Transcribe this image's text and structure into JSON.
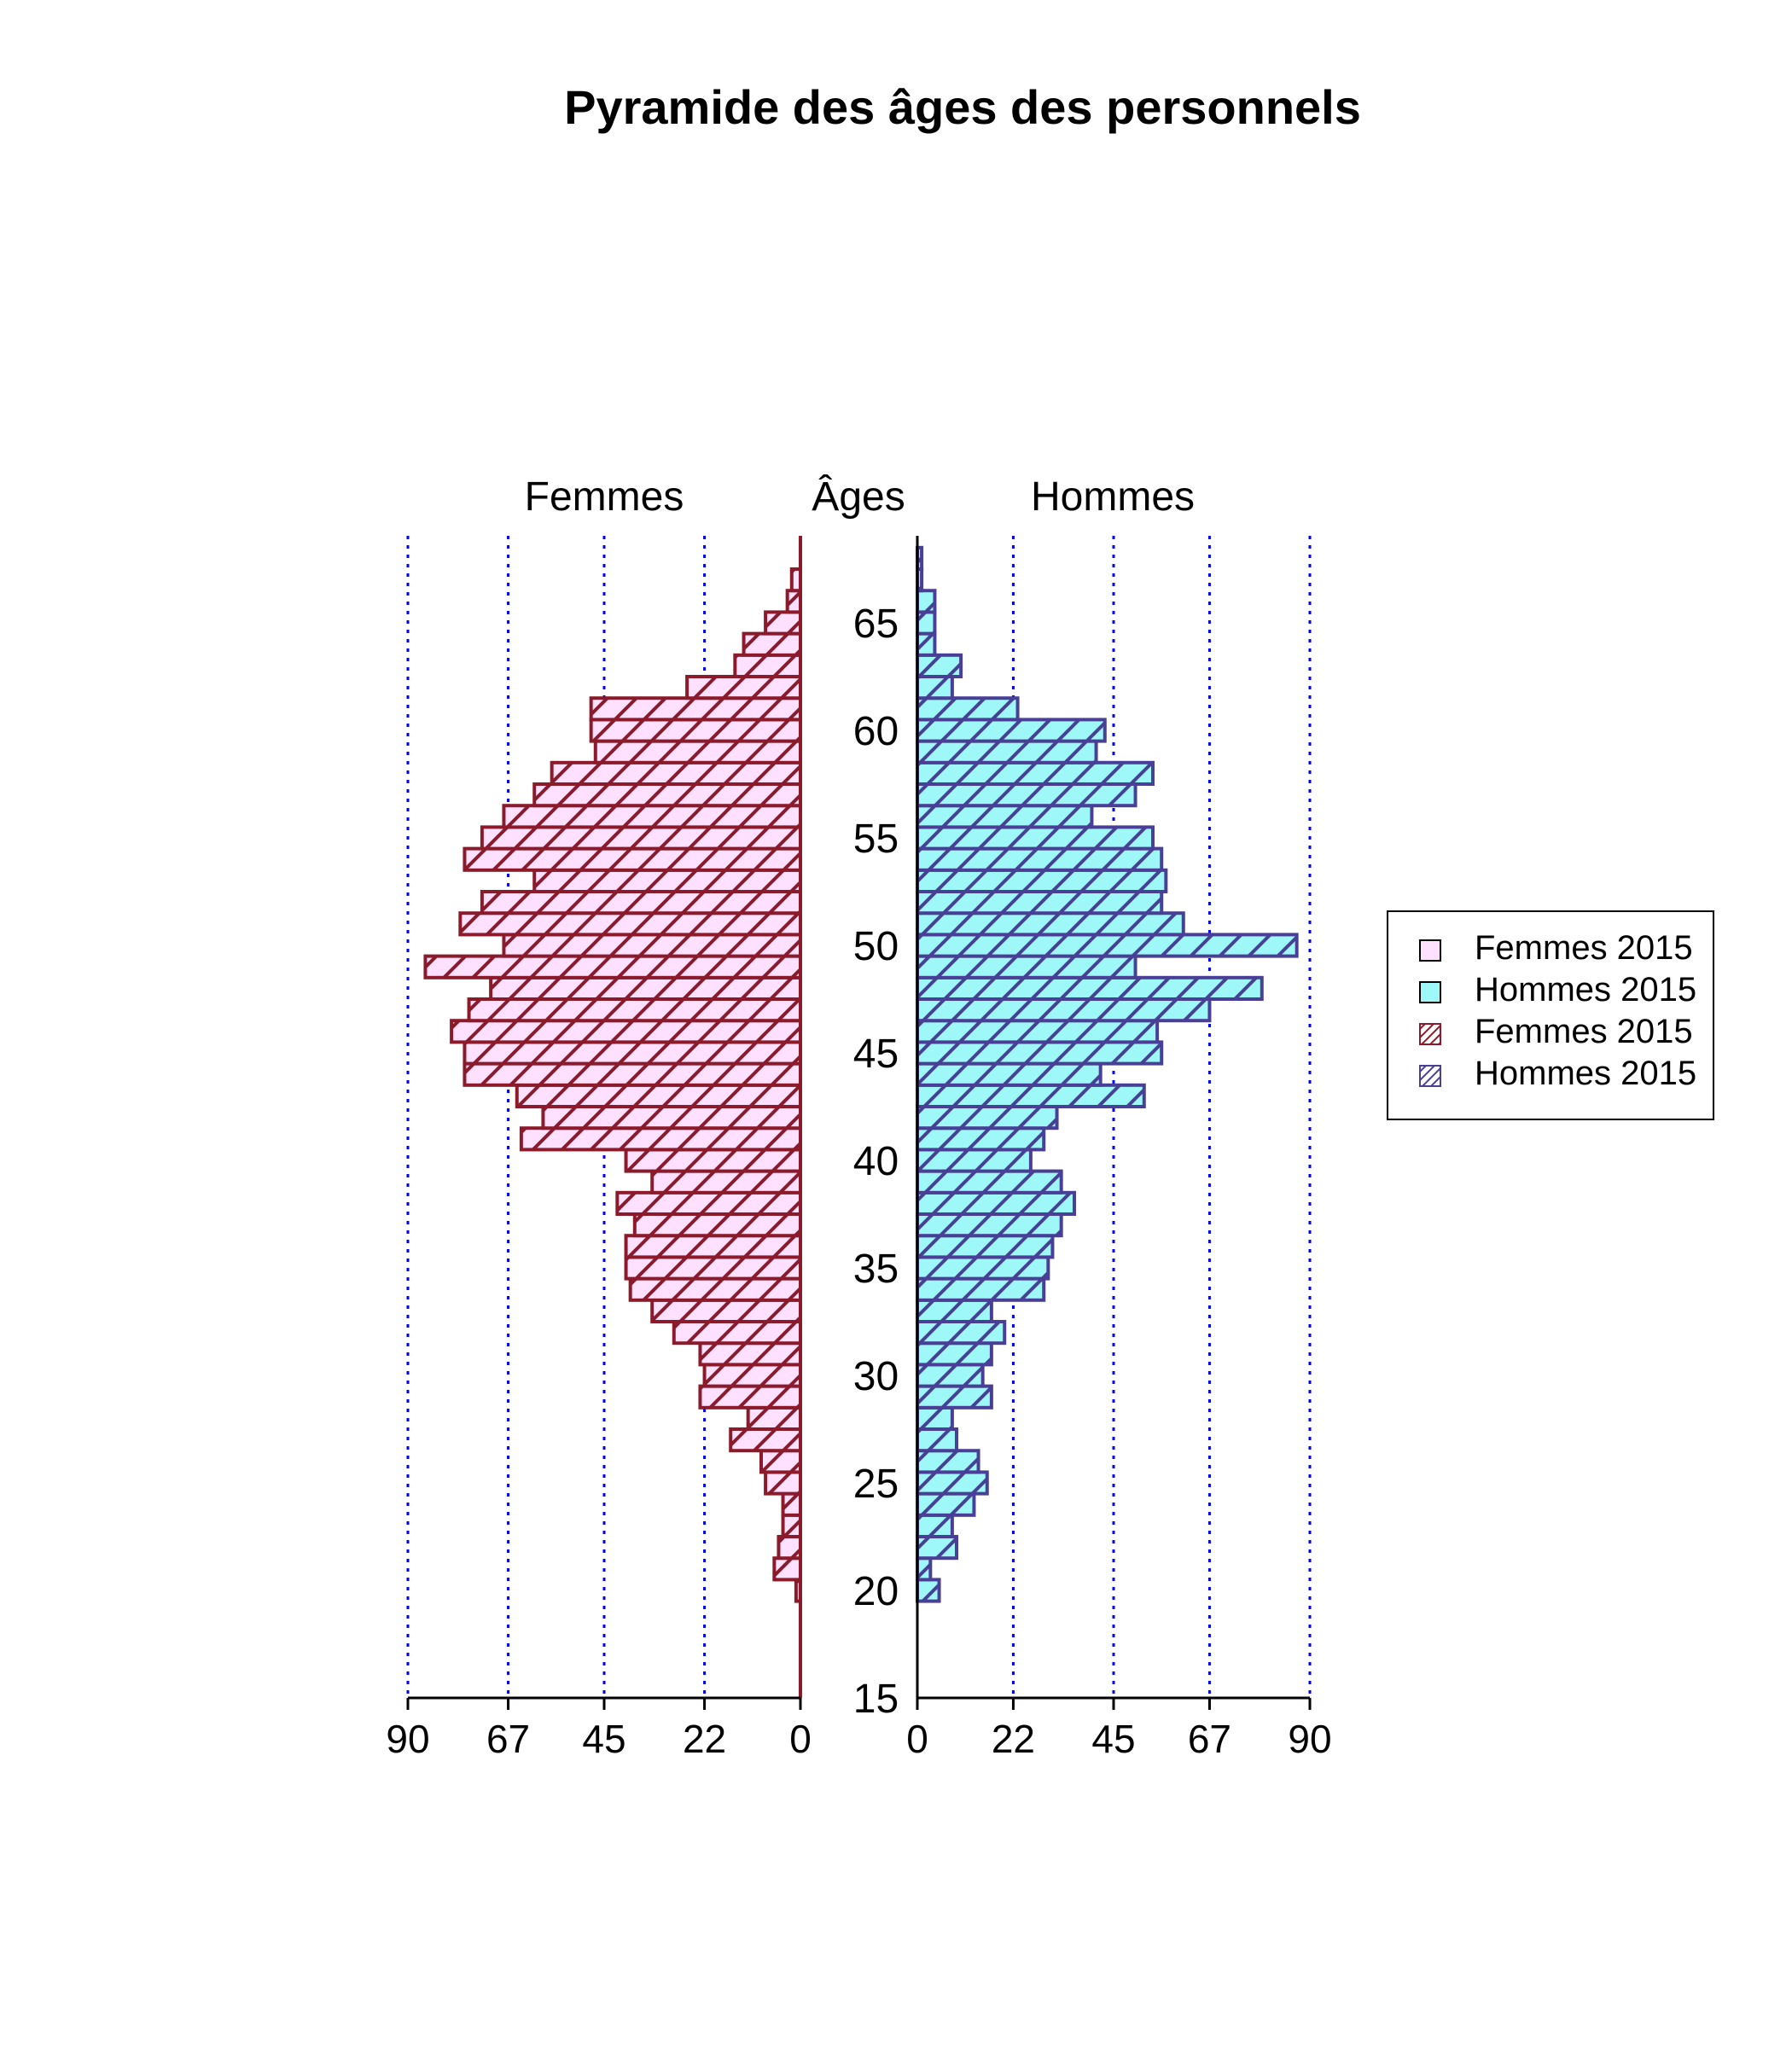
{
  "chart_data": {
    "type": "bar",
    "orientation": "horizontal",
    "title": "Pyramide des âges des personnels",
    "left_panel_label": "Femmes",
    "center_label": "Âges",
    "right_panel_label": "Hommes",
    "age_ticks": [
      "15",
      "20",
      "25",
      "30",
      "35",
      "40",
      "45",
      "50",
      "55",
      "60",
      "65"
    ],
    "x_ticks_left": [
      "90",
      "67",
      "45",
      "22",
      "0"
    ],
    "x_ticks_right": [
      "0",
      "22",
      "45",
      "67",
      "90"
    ],
    "xlim": [
      0,
      90
    ],
    "ylim": [
      15,
      69
    ],
    "grid": "vertical dotted",
    "legend_placement": "right",
    "legend": [
      {
        "label": "Femmes 2015",
        "fill": "#ffe0ff",
        "hatch": false
      },
      {
        "label": "Hommes 2015",
        "fill": "#9ef8f8",
        "hatch": false
      },
      {
        "label": "Femmes 2015",
        "fill": "#ffffff",
        "hatch": true
      },
      {
        "label": "Hommes 2015",
        "fill": "#ffffff",
        "hatch": true
      }
    ],
    "colors": {
      "femmes_fill": "#ffe0ff",
      "femmes_border": "#8b1a2a",
      "hommes_fill": "#9ef8f8",
      "hommes_border": "#4a3f96",
      "grid": "#0000ff"
    },
    "ages": [
      20,
      21,
      22,
      23,
      24,
      25,
      26,
      27,
      28,
      29,
      30,
      31,
      32,
      33,
      34,
      35,
      36,
      37,
      38,
      39,
      40,
      41,
      42,
      43,
      44,
      45,
      46,
      47,
      48,
      49,
      50,
      51,
      52,
      53,
      54,
      55,
      56,
      57,
      58,
      59,
      60,
      61,
      62,
      63,
      64,
      65,
      66,
      67,
      68
    ],
    "series": [
      {
        "name": "Femmes 2015",
        "values": [
          1,
          6,
          5,
          4,
          4,
          8,
          9,
          16,
          12,
          23,
          22,
          23,
          29,
          34,
          39,
          40,
          40,
          38,
          42,
          34,
          40,
          64,
          59,
          65,
          77,
          77,
          80,
          76,
          71,
          86,
          68,
          78,
          73,
          61,
          77,
          73,
          68,
          61,
          57,
          47,
          48,
          48,
          26,
          15,
          13,
          8,
          3,
          2,
          0
        ]
      },
      {
        "name": "Hommes 2015",
        "values": [
          5,
          3,
          9,
          8,
          13,
          16,
          14,
          9,
          8,
          17,
          15,
          17,
          20,
          17,
          29,
          30,
          31,
          33,
          36,
          33,
          26,
          29,
          32,
          52,
          42,
          56,
          55,
          67,
          79,
          50,
          87,
          61,
          56,
          57,
          56,
          54,
          40,
          50,
          54,
          41,
          43,
          23,
          8,
          10,
          4,
          4,
          4,
          1,
          1
        ]
      }
    ]
  }
}
